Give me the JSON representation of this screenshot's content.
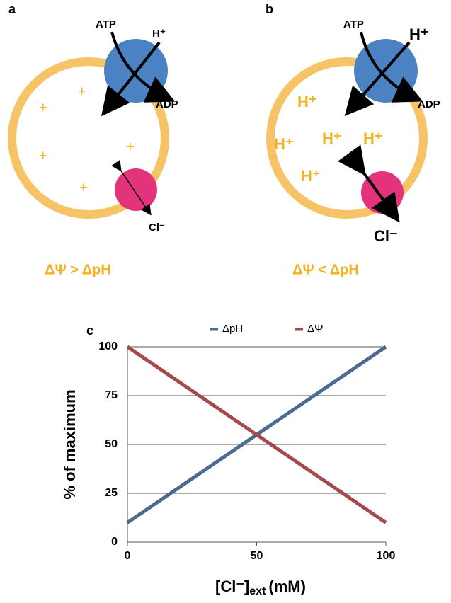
{
  "panel_a": {
    "label": "a",
    "atp": "ATP",
    "proton": "H⁺",
    "adp": "ADP",
    "chloride": "Cl⁻",
    "charges": [
      "+",
      "+",
      "+",
      "+",
      "+"
    ],
    "condition": "ΔΨ > ΔpH"
  },
  "panel_b": {
    "label": "b",
    "atp": "ATP",
    "proton": "H⁺",
    "adp": "ADP",
    "chloride": "Cl⁻",
    "protons": [
      "H⁺",
      "H⁺",
      "H⁺",
      "H⁺",
      "H⁺"
    ],
    "condition": "ΔΨ < ΔpH"
  },
  "chart_data": {
    "type": "line",
    "panel_label": "c",
    "ylabel": "% of maximum",
    "xlabel": {
      "main": "[Cl⁻]",
      "sub": "ext",
      "unit": "(mM)"
    },
    "x": [
      0,
      100
    ],
    "series": [
      {
        "name": "ΔpH",
        "color": "#4a6a8e",
        "values": [
          10,
          100
        ]
      },
      {
        "name": "ΔΨ",
        "color": "#a44a4c",
        "values": [
          100,
          10
        ]
      }
    ],
    "xlim": [
      0,
      100
    ],
    "xticks": [
      0,
      50,
      100
    ],
    "ylim": [
      0,
      100
    ],
    "yticks": [
      0,
      25,
      50,
      75,
      100
    ],
    "grid": true,
    "legend": "top"
  }
}
